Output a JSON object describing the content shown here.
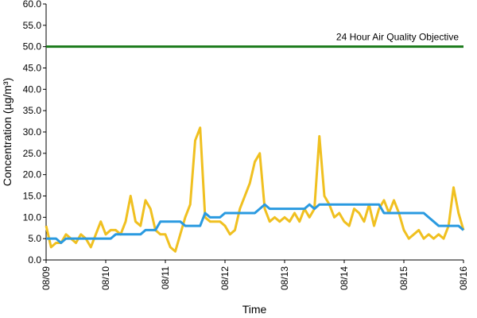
{
  "chart_data": {
    "type": "line",
    "x_label": "Time",
    "y_label": "Concentration (µg/m³)",
    "annotation": "24 Hour Air Quality Objective",
    "objective": {
      "value": 50,
      "color": "#1a7a1a"
    },
    "x": [
      0,
      2,
      4,
      6,
      8,
      10,
      12,
      14,
      16,
      18,
      20,
      22,
      24,
      26,
      28,
      30,
      32,
      34,
      36,
      38,
      40,
      42,
      44,
      46,
      48,
      50,
      52,
      54,
      56,
      58,
      60,
      62,
      64,
      66,
      68,
      70,
      72,
      74,
      76,
      78,
      80,
      82,
      84,
      86,
      88,
      90,
      92,
      94,
      96,
      98,
      100,
      102,
      104,
      106,
      108,
      110,
      112,
      114,
      116,
      118,
      120,
      122,
      124,
      126,
      128,
      130,
      132,
      134,
      136,
      138,
      140,
      142,
      144,
      146,
      148,
      150,
      152,
      154,
      156,
      158,
      160,
      162,
      164,
      166,
      168
    ],
    "series": [
      {
        "color": "#f0c020",
        "values": [
          8,
          3,
          4,
          4,
          6,
          5,
          4,
          6,
          5,
          3,
          6,
          9,
          6,
          7,
          7,
          6,
          9,
          15,
          9,
          8,
          14,
          12,
          7,
          6,
          6,
          3,
          2,
          6,
          10,
          13,
          28,
          31,
          10,
          9,
          9,
          9,
          8,
          6,
          7,
          12,
          15,
          18,
          23,
          25,
          12,
          9,
          10,
          9,
          10,
          9,
          11,
          9,
          12,
          10,
          12,
          29,
          15,
          13,
          10,
          11,
          9,
          8,
          12,
          11,
          9,
          13,
          8,
          12,
          14,
          11,
          14,
          11,
          7,
          5,
          6,
          7,
          5,
          6,
          5,
          6,
          5,
          8,
          17,
          11,
          7
        ]
      },
      {
        "color": "#2a9ae0",
        "values": [
          5,
          5,
          5,
          4,
          5,
          5,
          5,
          5,
          5,
          5,
          5,
          5,
          5,
          5,
          6,
          6,
          6,
          6,
          6,
          6,
          7,
          7,
          7,
          9,
          9,
          9,
          9,
          9,
          8,
          8,
          8,
          8,
          11,
          10,
          10,
          10,
          11,
          11,
          11,
          11,
          11,
          11,
          11,
          12,
          13,
          12,
          12,
          12,
          12,
          12,
          12,
          12,
          12,
          13,
          12,
          13,
          13,
          13,
          13,
          13,
          13,
          13,
          13,
          13,
          13,
          13,
          13,
          13,
          11,
          11,
          11,
          11,
          11,
          11,
          11,
          11,
          11,
          10,
          9,
          8,
          8,
          8,
          8,
          8,
          7
        ]
      }
    ],
    "xlim": [
      0,
      168
    ],
    "xticks": [
      {
        "value": 0,
        "label": "08/09"
      },
      {
        "value": 24,
        "label": "08/10"
      },
      {
        "value": 48,
        "label": "08/11"
      },
      {
        "value": 72,
        "label": "08/12"
      },
      {
        "value": 96,
        "label": "08/13"
      },
      {
        "value": 120,
        "label": "08/14"
      },
      {
        "value": 144,
        "label": "08/15"
      },
      {
        "value": 168,
        "label": "08/16"
      }
    ],
    "ylim": [
      0,
      60
    ],
    "yticks": [
      {
        "value": 0,
        "label": "0.0"
      },
      {
        "value": 5,
        "label": "5.0"
      },
      {
        "value": 10,
        "label": "10.0"
      },
      {
        "value": 15,
        "label": "15.0"
      },
      {
        "value": 20,
        "label": "20.0"
      },
      {
        "value": 25,
        "label": "25.0"
      },
      {
        "value": 30,
        "label": "30.0"
      },
      {
        "value": 35,
        "label": "35.0"
      },
      {
        "value": 40,
        "label": "40.0"
      },
      {
        "value": 45,
        "label": "45.0"
      },
      {
        "value": 50,
        "label": "50.0"
      },
      {
        "value": 55,
        "label": "55.0"
      },
      {
        "value": 60,
        "label": "60.0"
      }
    ]
  }
}
